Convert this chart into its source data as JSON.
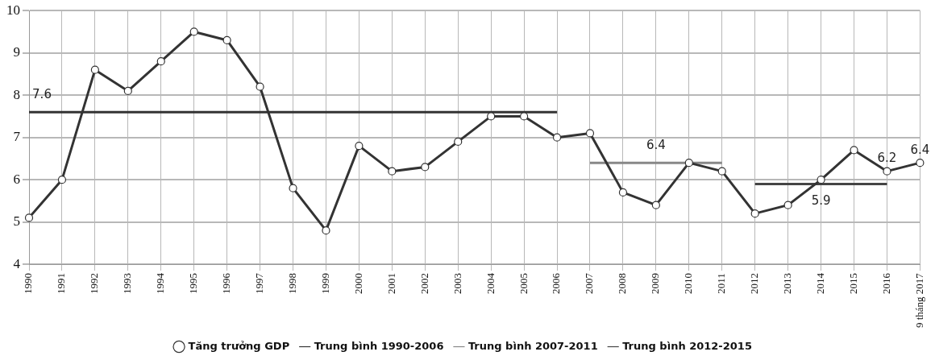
{
  "chart_data": {
    "type": "line",
    "categories": [
      "1990",
      "1991",
      "1992",
      "1993",
      "1994",
      "1995",
      "1996",
      "1997",
      "1998",
      "1999",
      "2000",
      "2001",
      "2002",
      "2003",
      "2004",
      "2005",
      "2006",
      "2007",
      "2008",
      "2009",
      "2010",
      "2011",
      "2012",
      "2013",
      "2014",
      "2015",
      "2016",
      "9 tháng 2017"
    ],
    "series": [
      {
        "name": "Tăng trưởng GDP",
        "color": "#333333",
        "marker": "circle",
        "values": [
          5.1,
          6.0,
          8.6,
          8.1,
          8.8,
          9.5,
          9.3,
          8.2,
          5.8,
          4.8,
          6.8,
          6.2,
          6.3,
          6.9,
          7.5,
          7.5,
          7.0,
          7.1,
          5.7,
          5.4,
          6.4,
          6.2,
          5.2,
          5.4,
          6.0,
          6.7,
          6.2,
          6.4
        ],
        "value_labels": [
          null,
          null,
          null,
          null,
          null,
          null,
          null,
          null,
          null,
          null,
          null,
          null,
          null,
          null,
          null,
          null,
          null,
          null,
          null,
          null,
          null,
          null,
          null,
          null,
          null,
          null,
          "6.2",
          "6.4"
        ]
      },
      {
        "name": "Trung bình 1990-2006",
        "color": "#333333",
        "marker": "none",
        "values": [
          7.6,
          7.6,
          7.6,
          7.6,
          7.6,
          7.6,
          7.6,
          7.6,
          7.6,
          7.6,
          7.6,
          7.6,
          7.6,
          7.6,
          7.6,
          7.6,
          7.6,
          null,
          null,
          null,
          null,
          null,
          null,
          null,
          null,
          null,
          null,
          null
        ]
      },
      {
        "name": "Trung bình 2007-2011",
        "color": "#888888",
        "marker": "none",
        "values": [
          null,
          null,
          null,
          null,
          null,
          null,
          null,
          null,
          null,
          null,
          null,
          null,
          null,
          null,
          null,
          null,
          null,
          6.4,
          6.4,
          6.4,
          6.4,
          6.4,
          null,
          null,
          null,
          null,
          null,
          null
        ]
      },
      {
        "name": "Trung bình 2012-2015",
        "color": "#444444",
        "marker": "none",
        "values": [
          null,
          null,
          null,
          null,
          null,
          null,
          null,
          null,
          null,
          null,
          null,
          null,
          null,
          null,
          null,
          null,
          null,
          null,
          null,
          null,
          null,
          null,
          5.9,
          5.9,
          5.9,
          5.9,
          5.9,
          null
        ]
      }
    ],
    "ylim": [
      4,
      10
    ],
    "yticks": [
      4,
      5,
      6,
      7,
      8,
      9,
      10
    ],
    "grid": true,
    "legend": "bottom",
    "line_style": "solid",
    "annotations": [
      {
        "text": "7.6",
        "x": "1990",
        "y": 7.6
      },
      {
        "text": "6.4",
        "x": "2009",
        "y": 6.4
      },
      {
        "text": "5.9",
        "x": "2014",
        "y": 5.9
      }
    ]
  }
}
